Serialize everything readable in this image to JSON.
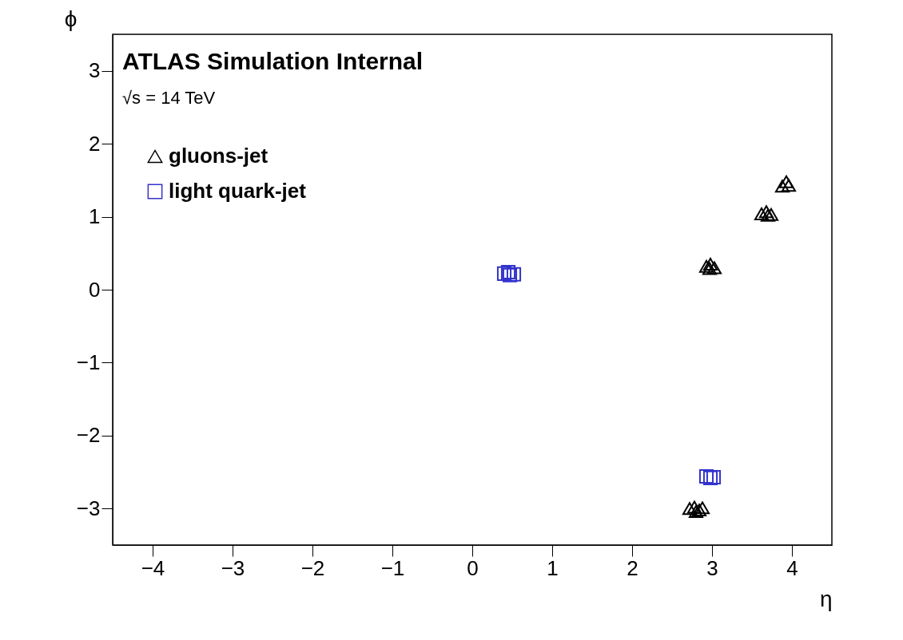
{
  "chart_data": {
    "type": "scatter",
    "xlabel": "η",
    "ylabel": "ϕ",
    "annotations": [
      "ATLAS Simulation Internal",
      "√s = 14 TeV"
    ],
    "xlim": [
      -4.5,
      4.5
    ],
    "ylim": [
      -3.5,
      3.5
    ],
    "xticks": [
      -4,
      -3,
      -2,
      -1,
      0,
      1,
      2,
      3,
      4
    ],
    "yticks": [
      -3,
      -2,
      -1,
      0,
      1,
      2,
      3
    ],
    "grid": false,
    "legend": "top left",
    "series": [
      {
        "name": "gluons-jet",
        "color": "#000000",
        "marker": "triangle",
        "x": [
          2.72,
          2.78,
          2.84,
          2.8,
          2.88,
          2.93,
          2.98,
          3.03,
          2.97,
          3.62,
          3.68,
          3.74,
          3.7,
          3.88,
          3.93,
          3.96
        ],
        "values": [
          -3.0,
          -2.98,
          -3.02,
          -3.04,
          -2.99,
          0.32,
          0.35,
          0.3,
          0.29,
          1.04,
          1.07,
          1.03,
          1.02,
          1.42,
          1.48,
          1.43
        ]
      },
      {
        "name": "light quark-jet",
        "color": "#3333cc",
        "marker": "square",
        "x": [
          0.4,
          0.47,
          0.52,
          0.45,
          2.93,
          2.98,
          3.02
        ],
        "values": [
          0.22,
          0.2,
          0.21,
          0.24,
          -2.56,
          -2.58,
          -2.57
        ]
      }
    ]
  }
}
